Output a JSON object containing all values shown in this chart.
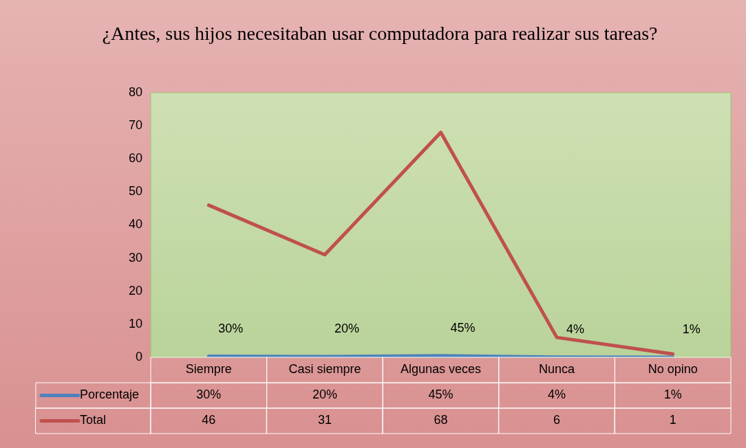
{
  "chart_data": {
    "type": "line",
    "title": "¿Antes, sus hijos necesitaban usar computadora para realizar sus tareas?",
    "categories": [
      "Siempre",
      "Casi siempre",
      "Algunas veces",
      "Nunca",
      "No opino"
    ],
    "series": [
      {
        "name": "Porcentaje",
        "color": "#4f81bd",
        "values": [
          0.3,
          0.2,
          0.45,
          0.04,
          0.01
        ],
        "value_labels": [
          "30%",
          "20%",
          "45%",
          "4%",
          "1%"
        ]
      },
      {
        "name": "Total",
        "color": "#c0504d",
        "values": [
          46,
          31,
          68,
          6,
          1
        ],
        "value_labels": [
          "46",
          "31",
          "68",
          "6",
          "1"
        ]
      }
    ],
    "ylim": [
      0,
      80
    ],
    "yticks": [
      0,
      10,
      20,
      30,
      40,
      50,
      60,
      70,
      80
    ],
    "grid": false,
    "legend": "bottom",
    "marker": "none",
    "line_style": "solid"
  }
}
